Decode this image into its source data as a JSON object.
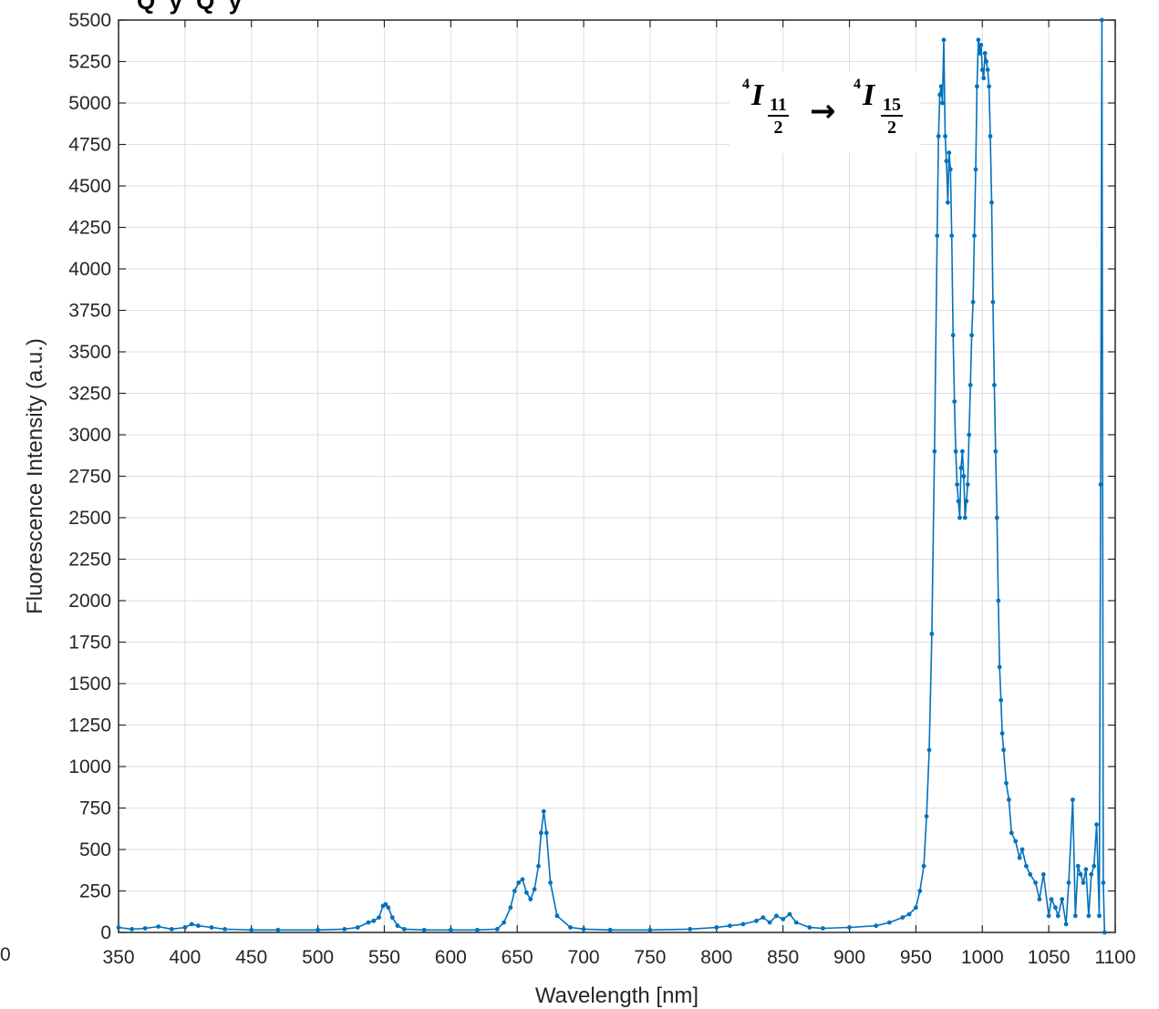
{
  "chart_data": {
    "type": "line",
    "title": "",
    "xlabel": "Wavelength [nm]",
    "ylabel": "Fluorescence Intensity (a.u.)",
    "xlim": [
      350,
      1100
    ],
    "ylim": [
      0,
      5500
    ],
    "x_ticks": [
      350,
      400,
      450,
      500,
      550,
      600,
      650,
      700,
      750,
      800,
      850,
      900,
      950,
      1000,
      1050,
      1100
    ],
    "y_ticks": [
      0,
      250,
      500,
      750,
      1000,
      1250,
      1500,
      1750,
      2000,
      2250,
      2500,
      2750,
      3000,
      3250,
      3500,
      3750,
      4000,
      4250,
      4500,
      4750,
      5000,
      5250,
      5500
    ],
    "grid": true,
    "series_color": "#0072BD",
    "marker": "dot",
    "annotation": {
      "sup_left": "4",
      "letter_left": "I",
      "num_left": "11",
      "den_left": "2",
      "arrow": "→",
      "sup_right": "4",
      "letter_right": "I",
      "num_right": "15",
      "den_right": "2"
    },
    "series": [
      {
        "x": [
          350,
          360,
          370,
          380,
          390,
          400,
          405,
          410,
          420,
          430,
          450,
          470,
          500,
          520,
          530,
          538,
          542,
          546,
          549,
          551,
          553,
          556,
          560,
          565,
          580,
          600,
          620,
          635,
          640,
          645,
          648,
          651,
          654,
          657,
          660,
          663,
          666,
          668,
          670,
          672,
          675,
          680,
          690,
          700,
          720,
          750,
          780,
          800,
          810,
          820,
          830,
          835,
          840,
          845,
          850,
          855,
          860,
          870,
          880,
          900,
          920,
          930,
          940,
          945,
          950,
          953,
          956,
          958,
          960,
          962,
          964,
          966,
          967,
          968,
          969,
          970,
          971,
          972,
          973,
          974,
          975,
          976,
          977,
          978,
          979,
          980,
          981,
          982,
          983,
          984,
          985,
          986,
          987,
          988,
          989,
          990,
          991,
          992,
          993,
          994,
          995,
          996,
          997,
          998,
          999,
          1000,
          1001,
          1002,
          1003,
          1004,
          1005,
          1006,
          1007,
          1008,
          1009,
          1010,
          1011,
          1012,
          1013,
          1014,
          1015,
          1016,
          1018,
          1020,
          1022,
          1025,
          1028,
          1030,
          1033,
          1036,
          1040,
          1043,
          1046,
          1050,
          1052,
          1055,
          1057,
          1060,
          1063,
          1065,
          1068,
          1070,
          1072,
          1074,
          1076,
          1078,
          1080,
          1082,
          1084,
          1086,
          1088,
          1089,
          1090,
          1091,
          1092
        ],
        "values": [
          30,
          20,
          25,
          35,
          20,
          30,
          50,
          40,
          30,
          20,
          15,
          15,
          15,
          20,
          30,
          60,
          70,
          90,
          160,
          170,
          150,
          90,
          40,
          20,
          15,
          15,
          15,
          20,
          60,
          150,
          250,
          300,
          320,
          240,
          200,
          260,
          400,
          600,
          730,
          600,
          300,
          100,
          30,
          20,
          15,
          15,
          20,
          30,
          40,
          50,
          70,
          90,
          60,
          100,
          80,
          110,
          60,
          30,
          25,
          30,
          40,
          60,
          90,
          110,
          150,
          250,
          400,
          700,
          1100,
          1800,
          2900,
          4200,
          4800,
          5050,
          5100,
          5000,
          5380,
          4800,
          4650,
          4400,
          4700,
          4600,
          4200,
          3600,
          3200,
          2900,
          2700,
          2600,
          2500,
          2800,
          2900,
          2750,
          2500,
          2600,
          2700,
          3000,
          3300,
          3600,
          3800,
          4200,
          4600,
          5100,
          5380,
          5300,
          5350,
          5200,
          5150,
          5300,
          5250,
          5200,
          5100,
          4800,
          4400,
          3800,
          3300,
          2900,
          2500,
          2000,
          1600,
          1400,
          1200,
          1100,
          900,
          800,
          600,
          550,
          450,
          500,
          400,
          350,
          300,
          200,
          350,
          100,
          200,
          150,
          100,
          200,
          50,
          300,
          800,
          100,
          400,
          350,
          300,
          380,
          100,
          350,
          400,
          650,
          100,
          2700,
          5500,
          300,
          0
        ]
      }
    ]
  },
  "page": {
    "edge_left_text": "0",
    "top_clipped_text": "Q     y     Q     y"
  }
}
